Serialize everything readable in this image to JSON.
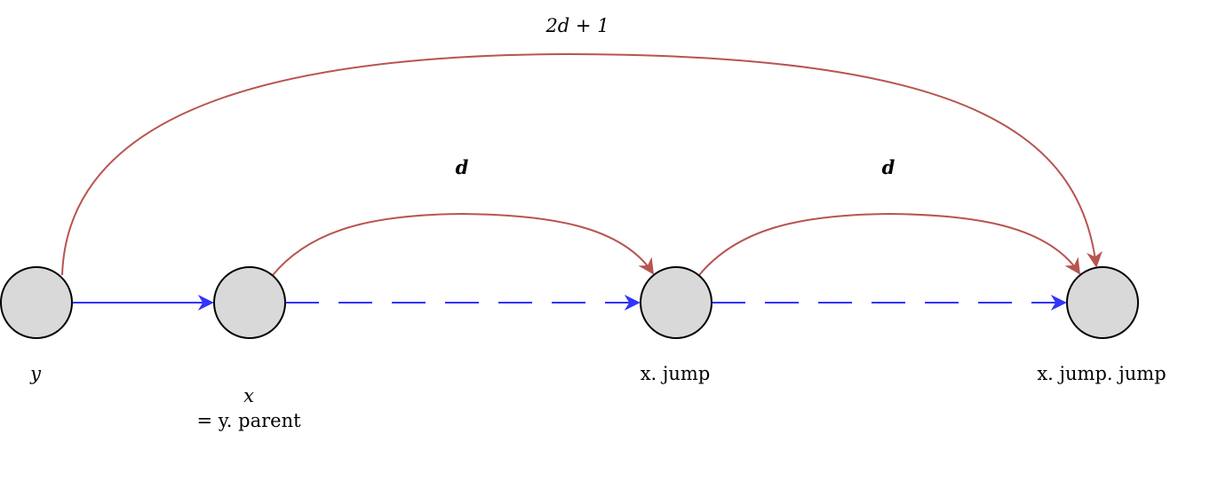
{
  "nodes": [
    {
      "id": "y",
      "label_lines": [
        "y"
      ]
    },
    {
      "id": "x",
      "label_lines": [
        "x",
        "= y. parent"
      ]
    },
    {
      "id": "x_jump",
      "label_lines": [
        "x. jump"
      ]
    },
    {
      "id": "x_jump_jump",
      "label_lines": [
        "x. jump. jump"
      ]
    }
  ],
  "edges": {
    "parent_edge": {
      "style": "solid"
    },
    "jump_edge_1": {
      "style": "dashed"
    },
    "jump_edge_2": {
      "style": "dashed"
    },
    "arc_x_to_jump": {
      "label": "d"
    },
    "arc_jump_to_jumpjump": {
      "label": "d"
    },
    "arc_y_to_jumpjump": {
      "label": "2d + 1"
    }
  },
  "colors": {
    "node_fill": "#d9d9d9",
    "node_stroke": "#000000",
    "blue_edge": "#3333ff",
    "red_arc": "#b85450"
  }
}
